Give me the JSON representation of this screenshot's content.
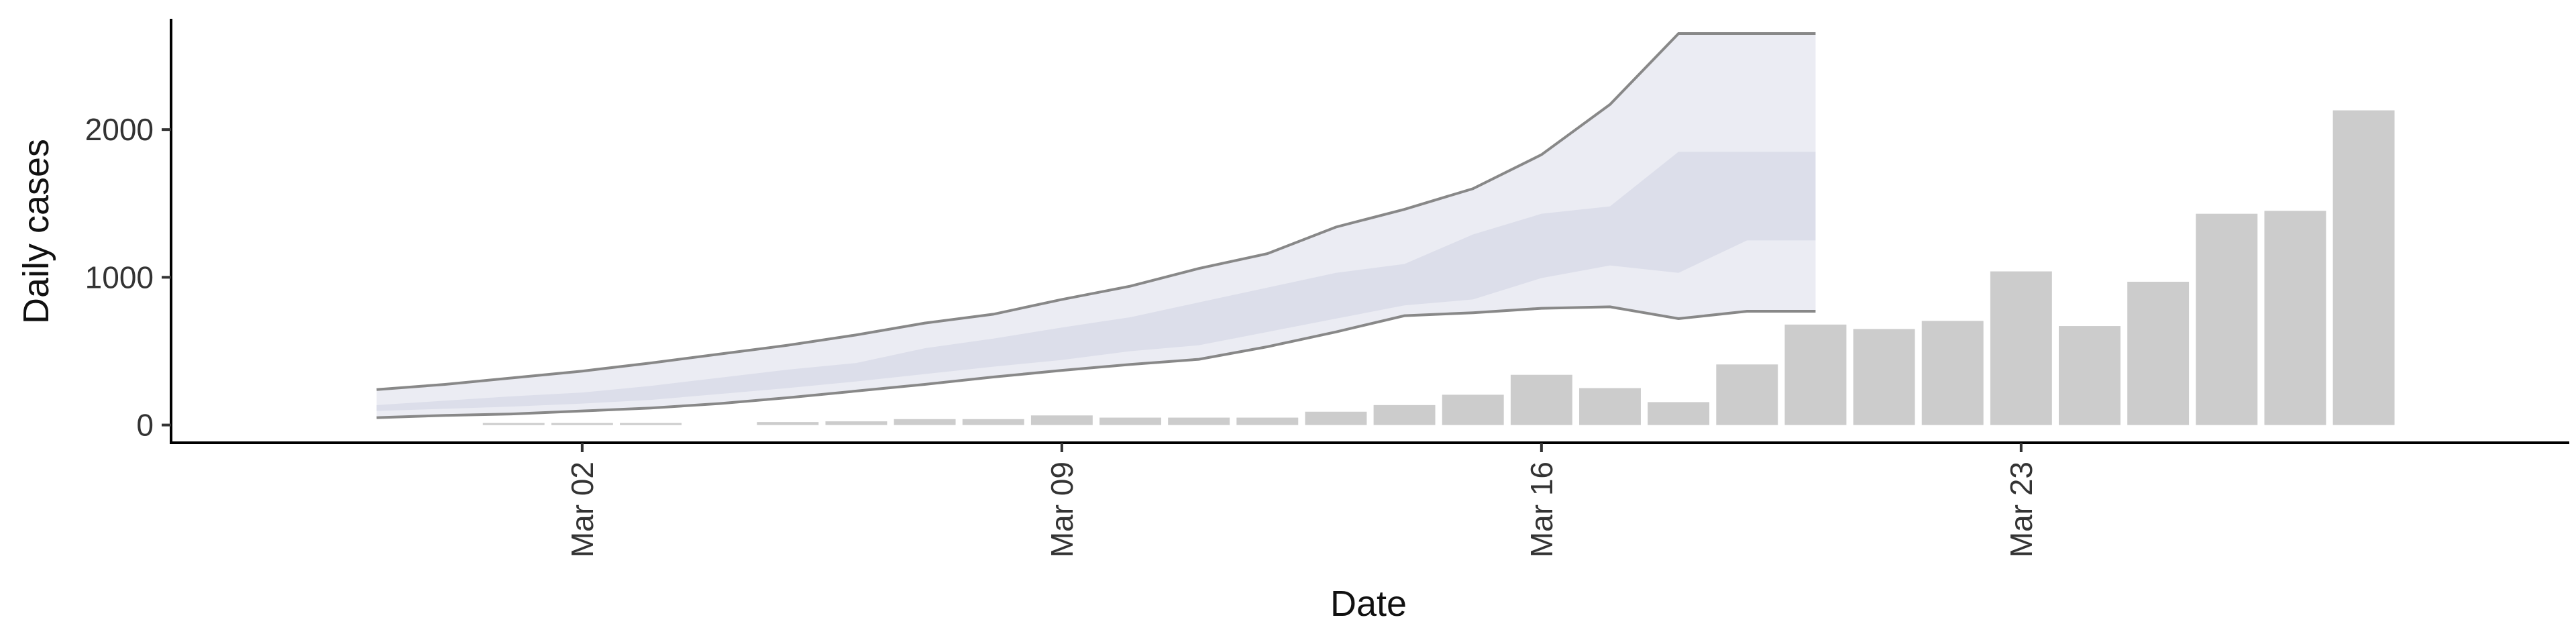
{
  "chart_data": {
    "type": "bar",
    "title": "",
    "xlabel": "Date",
    "ylabel": "Daily cases",
    "x_axis": {
      "type": "date",
      "ticks": [
        {
          "date": "2020-03-02",
          "label": "Mar 02"
        },
        {
          "date": "2020-03-09",
          "label": "Mar 09"
        },
        {
          "date": "2020-03-16",
          "label": "Mar 16"
        },
        {
          "date": "2020-03-23",
          "label": "Mar 23"
        }
      ],
      "tick_label_orientation": "vertical",
      "range": [
        "2020-02-25",
        "2020-03-31"
      ]
    },
    "y_axis": {
      "ticks": [
        0,
        1000,
        2000
      ],
      "range": [
        -120,
        2750
      ]
    },
    "grid": false,
    "legend": "none",
    "colors": {
      "bars": "#cccccc",
      "outer_band": "#ebecf3",
      "middle_band": "#dcdeea",
      "inner_band": "#c9cde1",
      "band_lines": "#888888"
    },
    "bars": [
      {
        "date": "2020-03-01",
        "value": 4
      },
      {
        "date": "2020-03-02",
        "value": 4
      },
      {
        "date": "2020-03-03",
        "value": 10
      },
      {
        "date": "2020-03-05",
        "value": 20
      },
      {
        "date": "2020-03-06",
        "value": 25
      },
      {
        "date": "2020-03-07",
        "value": 40
      },
      {
        "date": "2020-03-08",
        "value": 40
      },
      {
        "date": "2020-03-09",
        "value": 65
      },
      {
        "date": "2020-03-10",
        "value": 50
      },
      {
        "date": "2020-03-11",
        "value": 50
      },
      {
        "date": "2020-03-12",
        "value": 50
      },
      {
        "date": "2020-03-13",
        "value": 90
      },
      {
        "date": "2020-03-14",
        "value": 135
      },
      {
        "date": "2020-03-15",
        "value": 205
      },
      {
        "date": "2020-03-16",
        "value": 340
      },
      {
        "date": "2020-03-17",
        "value": 250
      },
      {
        "date": "2020-03-18",
        "value": 155
      },
      {
        "date": "2020-03-19",
        "value": 410
      },
      {
        "date": "2020-03-20",
        "value": 680
      },
      {
        "date": "2020-03-21",
        "value": 650
      },
      {
        "date": "2020-03-22",
        "value": 705
      },
      {
        "date": "2020-03-23",
        "value": 1040
      },
      {
        "date": "2020-03-24",
        "value": 670
      },
      {
        "date": "2020-03-25",
        "value": 970
      },
      {
        "date": "2020-03-26",
        "value": 1430
      },
      {
        "date": "2020-03-27",
        "value": 1450
      },
      {
        "date": "2020-03-28",
        "value": 2130
      }
    ],
    "estimate": {
      "dates": [
        "2020-02-28",
        "2020-02-29",
        "2020-03-01",
        "2020-03-02",
        "2020-03-03",
        "2020-03-04",
        "2020-03-05",
        "2020-03-06",
        "2020-03-07",
        "2020-03-08",
        "2020-03-09",
        "2020-03-10",
        "2020-03-11",
        "2020-03-12",
        "2020-03-13",
        "2020-03-14",
        "2020-03-15",
        "2020-03-16",
        "2020-03-17",
        "2020-03-18",
        "2020-03-19",
        "2020-03-20"
      ],
      "lower_outer": [
        50,
        65,
        75,
        95,
        115,
        145,
        185,
        230,
        275,
        325,
        370,
        410,
        445,
        530,
        630,
        740,
        760,
        790,
        800,
        720,
        770,
        770
      ],
      "lower_middle": [
        95,
        110,
        125,
        145,
        170,
        210,
        250,
        295,
        345,
        395,
        440,
        500,
        540,
        630,
        720,
        810,
        850,
        995,
        1080,
        1030,
        1250,
        1250
      ],
      "upper_middle": [
        135,
        165,
        195,
        220,
        265,
        320,
        375,
        420,
        520,
        585,
        660,
        730,
        830,
        930,
        1030,
        1090,
        1290,
        1430,
        1480,
        1850,
        1850,
        1850
      ],
      "upper_outer": [
        240,
        275,
        320,
        365,
        420,
        480,
        540,
        610,
        690,
        750,
        850,
        940,
        1060,
        1160,
        1340,
        1460,
        1600,
        1830,
        2170,
        2650,
        2650,
        2650
      ]
    }
  }
}
